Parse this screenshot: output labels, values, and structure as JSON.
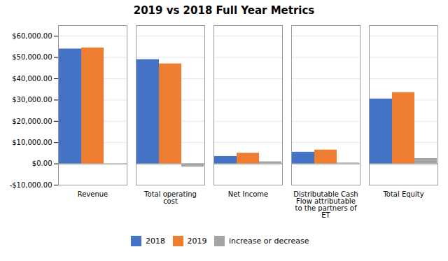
{
  "chart_data": {
    "type": "bar",
    "title": "2019 vs 2018 Full Year Metrics",
    "categories": [
      "Revenue",
      "Total operating\ncost",
      "Net Income",
      "Distributable Cash\nFlow attributable\nto the partners of\nET",
      "Total Equity"
    ],
    "series": [
      {
        "name": "2018",
        "color": "#4472C4",
        "values": [
          54000,
          49000,
          3500,
          5500,
          30500
        ]
      },
      {
        "name": "2019",
        "color": "#ED7D31",
        "values": [
          54500,
          47000,
          5000,
          6500,
          33500
        ]
      },
      {
        "name": "increase or decrease",
        "color": "#A5A5A5",
        "values": [
          0,
          -1500,
          1000,
          400,
          2500
        ]
      }
    ],
    "ylim": [
      -10000,
      65000
    ],
    "yticks": [
      {
        "value": -10000,
        "label": "-$10,000.00"
      },
      {
        "value": 0,
        "label": "$0.00"
      },
      {
        "value": 10000,
        "label": "$10,000.00"
      },
      {
        "value": 20000,
        "label": "$20,000.00"
      },
      {
        "value": 30000,
        "label": "$30,000.00"
      },
      {
        "value": 40000,
        "label": "$40,000.00"
      },
      {
        "value": 50000,
        "label": "$50,000.00"
      },
      {
        "value": 60000,
        "label": "$60,000.00"
      }
    ],
    "grid": true,
    "legend": "bottom"
  }
}
